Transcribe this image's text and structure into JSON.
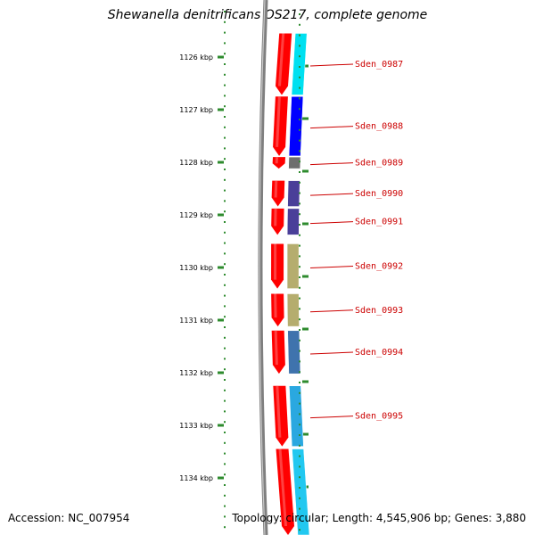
{
  "title": "Shewanella denitrificans OS217, complete genome",
  "footer": {
    "accession": "Accession: NC_007954",
    "info": "Topology: circular; Length: 4,545,906 bp; Genes: 3,880"
  },
  "colors": {
    "tick": "#2e8b2e",
    "backbone": "#7f7f7f",
    "cds_fill": "#ff0000",
    "label": "#cc0000"
  },
  "axis": {
    "unit": "kbp",
    "ticks": [
      1126,
      1127,
      1128,
      1129,
      1130,
      1131,
      1132,
      1133,
      1134
    ]
  },
  "genes": [
    {
      "name": "Sden_0987",
      "start": 1125.55,
      "end": 1126.72,
      "cog_color": "#00e0f0"
    },
    {
      "name": "Sden_0988",
      "start": 1126.75,
      "end": 1127.88,
      "cog_color": "#0000ff"
    },
    {
      "name": "Sden_0989",
      "start": 1127.9,
      "end": 1128.12,
      "cog_color": "#6e6e6e"
    },
    {
      "name": "Sden_0990",
      "start": 1128.35,
      "end": 1128.84,
      "cog_color": "#4a3f99"
    },
    {
      "name": "Sden_0991",
      "start": 1128.88,
      "end": 1129.38,
      "cog_color": "#4a3f99"
    },
    {
      "name": "Sden_0992",
      "start": 1129.55,
      "end": 1130.4,
      "cog_color": "#b5ad6e"
    },
    {
      "name": "Sden_0993",
      "start": 1130.5,
      "end": 1131.12,
      "cog_color": "#b5ad6e"
    },
    {
      "name": "Sden_0994",
      "start": 1131.2,
      "end": 1132.02,
      "cog_color": "#3f73ad"
    },
    {
      "name": "Sden_0995",
      "start": 1132.25,
      "end": 1133.4,
      "cog_color": "#2aa8e0"
    },
    {
      "name": "",
      "start": 1133.45,
      "end": 1135.2,
      "cog_color": "#22c8f0"
    }
  ]
}
